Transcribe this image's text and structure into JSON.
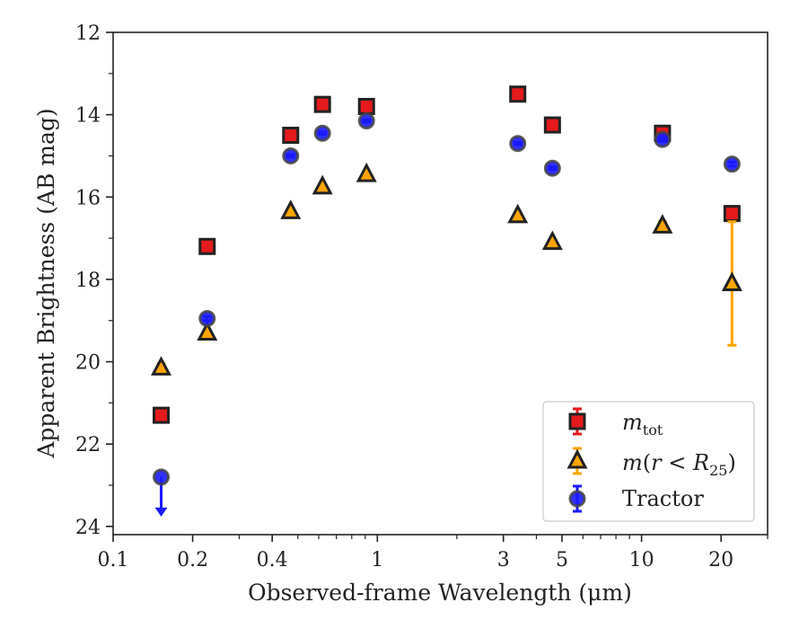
{
  "chart_data": {
    "type": "scatter",
    "xlabel": "Observed-frame Wavelength (μm)",
    "ylabel": "Apparent Brightness (AB mag)",
    "xscale": "log",
    "xlim": [
      0.1,
      30
    ],
    "ylim": [
      24.2,
      12
    ],
    "y_inverted": true,
    "xticks": [
      {
        "value": 0.1,
        "label": "0.1"
      },
      {
        "value": 0.2,
        "label": "0.2"
      },
      {
        "value": 0.4,
        "label": "0.4"
      },
      {
        "value": 1,
        "label": "1"
      },
      {
        "value": 3,
        "label": "3"
      },
      {
        "value": 5,
        "label": "5"
      },
      {
        "value": 10,
        "label": "10"
      },
      {
        "value": 20,
        "label": "20"
      }
    ],
    "minor_xticks": [
      0.3,
      0.5,
      0.6,
      0.7,
      0.8,
      0.9,
      2,
      4,
      6,
      7,
      8,
      9,
      30
    ],
    "yticks": [
      {
        "value": 12,
        "label": "12"
      },
      {
        "value": 14,
        "label": "14"
      },
      {
        "value": 16,
        "label": "16"
      },
      {
        "value": 18,
        "label": "18"
      },
      {
        "value": 20,
        "label": "20"
      },
      {
        "value": 22,
        "label": "22"
      },
      {
        "value": 24,
        "label": "24"
      }
    ],
    "minor_yticks": [
      13,
      15,
      17,
      19,
      21,
      23
    ],
    "grid": false,
    "legend_position": "lower-right",
    "series": [
      {
        "key": "m_tot",
        "legend_label": "m_tot",
        "marker": "square",
        "color": "#e41a1c",
        "edge_color": "#222222",
        "errbar_color": "#e41a1c",
        "points": [
          {
            "x": 0.152,
            "y": 21.3,
            "yerr": 0.05
          },
          {
            "x": 0.227,
            "y": 17.2,
            "yerr": 0.04
          },
          {
            "x": 0.47,
            "y": 14.5,
            "yerr": 0.03
          },
          {
            "x": 0.62,
            "y": 13.75,
            "yerr": 0.03
          },
          {
            "x": 0.91,
            "y": 13.8,
            "yerr": 0.03
          },
          {
            "x": 3.4,
            "y": 13.5,
            "yerr": 0.03
          },
          {
            "x": 4.6,
            "y": 14.25,
            "yerr": 0.03
          },
          {
            "x": 12.0,
            "y": 14.45,
            "yerr": 0.08
          },
          {
            "x": 22.0,
            "y": 16.4,
            "yerr": 0.1
          }
        ]
      },
      {
        "key": "m_r25",
        "legend_label": "m(r < R25)",
        "marker": "triangle",
        "color": "#ffa500",
        "edge_color": "#222222",
        "errbar_color": "#ffa500",
        "points": [
          {
            "x": 0.152,
            "y": 20.15,
            "yerr": 0.1
          },
          {
            "x": 0.227,
            "y": 19.3,
            "yerr": 0.05
          },
          {
            "x": 0.47,
            "y": 16.35,
            "yerr": 0.03
          },
          {
            "x": 0.62,
            "y": 15.75,
            "yerr": 0.03
          },
          {
            "x": 0.91,
            "y": 15.45,
            "yerr": 0.03
          },
          {
            "x": 3.4,
            "y": 16.45,
            "yerr": 0.03
          },
          {
            "x": 4.6,
            "y": 17.1,
            "yerr": 0.03
          },
          {
            "x": 12.0,
            "y": 16.7,
            "yerr": 0.1
          },
          {
            "x": 22.0,
            "y": 18.1,
            "yerr_lower": 1.5,
            "yerr_upper": 1.5
          }
        ]
      },
      {
        "key": "tractor",
        "legend_label": "Tractor",
        "marker": "circle",
        "color": "#1a1aff",
        "edge_color": "#444444",
        "errbar_color": "#1a1aff",
        "points": [
          {
            "x": 0.152,
            "y": 22.8,
            "upper_limit": true
          },
          {
            "x": 0.227,
            "y": 18.95,
            "yerr": 0.05
          },
          {
            "x": 0.47,
            "y": 15.0,
            "yerr": 0.03
          },
          {
            "x": 0.62,
            "y": 14.45,
            "yerr": 0.03
          },
          {
            "x": 0.91,
            "y": 14.15,
            "yerr": 0.03
          },
          {
            "x": 3.4,
            "y": 14.7,
            "yerr": 0.03
          },
          {
            "x": 4.6,
            "y": 15.3,
            "yerr": 0.03
          },
          {
            "x": 12.0,
            "y": 14.6,
            "yerr": 0.05
          },
          {
            "x": 22.0,
            "y": 15.2,
            "yerr": 0.05
          }
        ]
      }
    ]
  }
}
